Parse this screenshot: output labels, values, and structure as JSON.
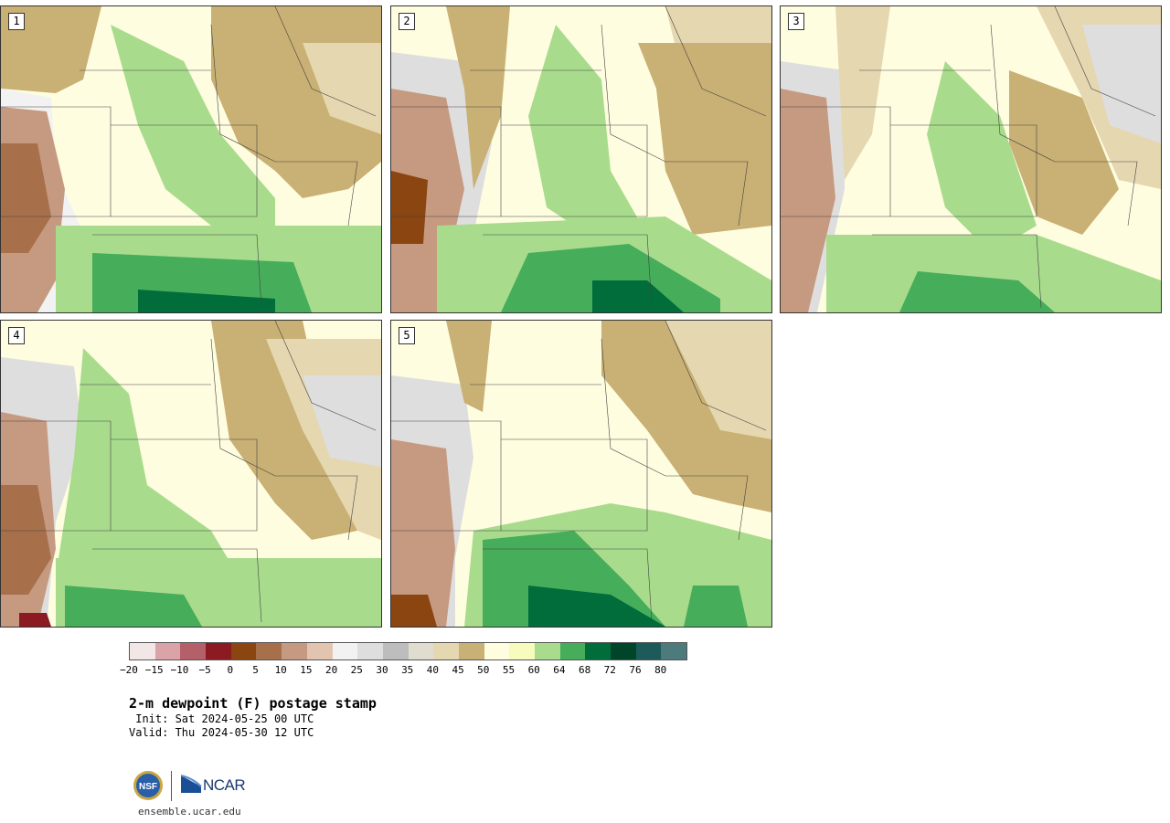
{
  "panels": [
    {
      "label": "1"
    },
    {
      "label": "2"
    },
    {
      "label": "3"
    },
    {
      "label": "4"
    },
    {
      "label": "5"
    }
  ],
  "colorbar": {
    "colors": [
      "#f3e6e6",
      "#d9a3a8",
      "#b4606a",
      "#8b1a22",
      "#8a4511",
      "#a86f4b",
      "#c69a80",
      "#e2c5b1",
      "#f2f2f2",
      "#dedede",
      "#bdbdbd",
      "#e0ddd0",
      "#e5d7b0",
      "#c9b074",
      "#fffde0",
      "#f7fbbd",
      "#a8dc8c",
      "#46ad5b",
      "#006d3a",
      "#00442a",
      "#1d5a5a",
      "#4d7a7a"
    ],
    "tick_labels": [
      "−20",
      "−15",
      "−10",
      "−5",
      "0",
      "5",
      "10",
      "15",
      "20",
      "25",
      "30",
      "35",
      "40",
      "45",
      "50",
      "55",
      "60",
      "64",
      "68",
      "72",
      "76",
      "80"
    ]
  },
  "title": "2-m dewpoint (F) postage stamp",
  "init": " Init: Sat 2024-05-25 00 UTC",
  "valid": "Valid: Thu 2024-05-30 12 UTC",
  "logos": {
    "nsf_text": "NSF",
    "ncar_text": "NCAR"
  },
  "site": "ensemble.ucar.edu"
}
